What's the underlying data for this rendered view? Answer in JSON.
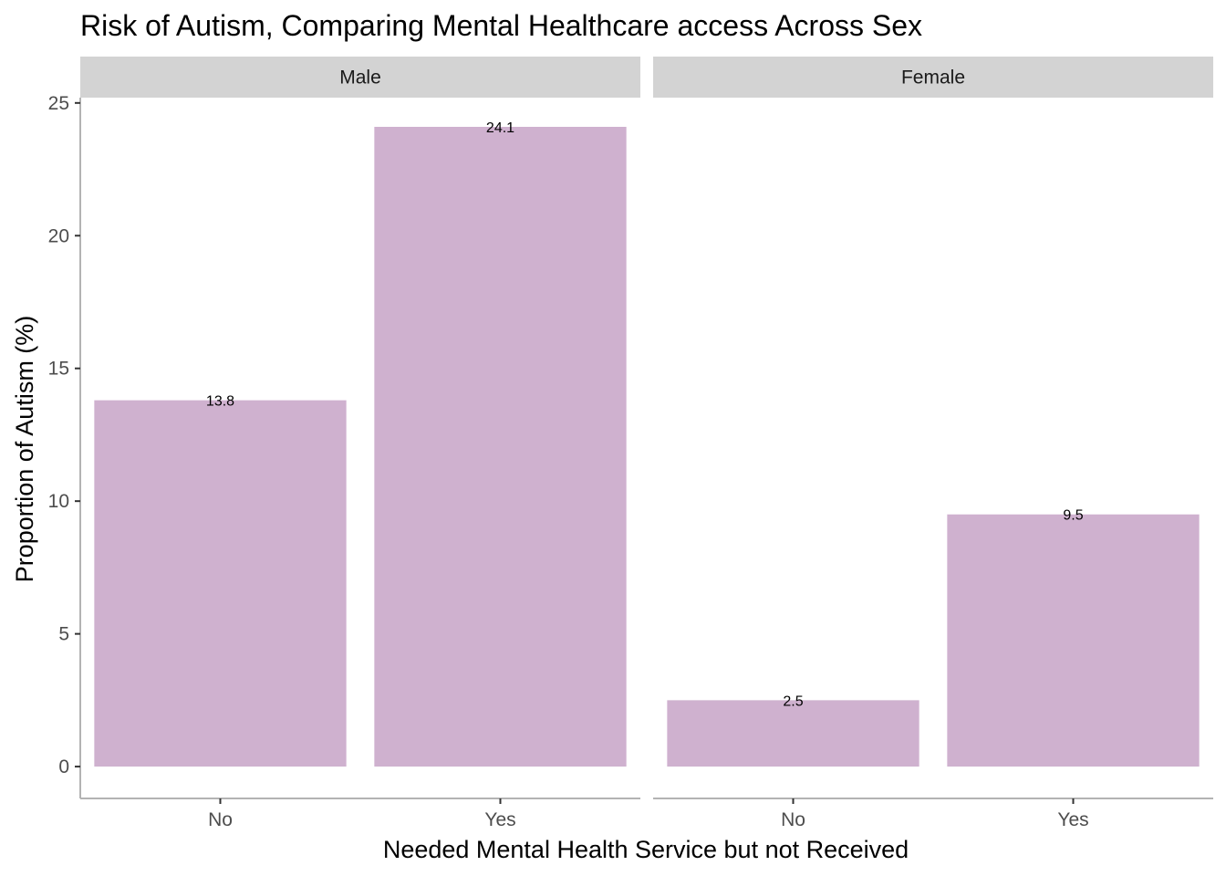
{
  "chart_data": {
    "type": "bar",
    "title": "Risk of Autism, Comparing Mental Healthcare access Across Sex",
    "xlabel": "Needed Mental Health Service but not Received",
    "ylabel": "Proportion of Autism (%)",
    "ylim": [
      -1.2,
      25.2
    ],
    "yticks": [
      0,
      5,
      10,
      15,
      20,
      25
    ],
    "categories": [
      "No",
      "Yes"
    ],
    "bar_color": "#cfb1cf",
    "strip_color": "#d3d3d3",
    "grid": false,
    "legend": "none",
    "facets": [
      {
        "name": "Male",
        "values": [
          13.8,
          24.1
        ],
        "labels": [
          "13.8",
          "24.1"
        ]
      },
      {
        "name": "Female",
        "values": [
          2.5,
          9.5
        ],
        "labels": [
          "2.5",
          "9.5"
        ]
      }
    ]
  }
}
